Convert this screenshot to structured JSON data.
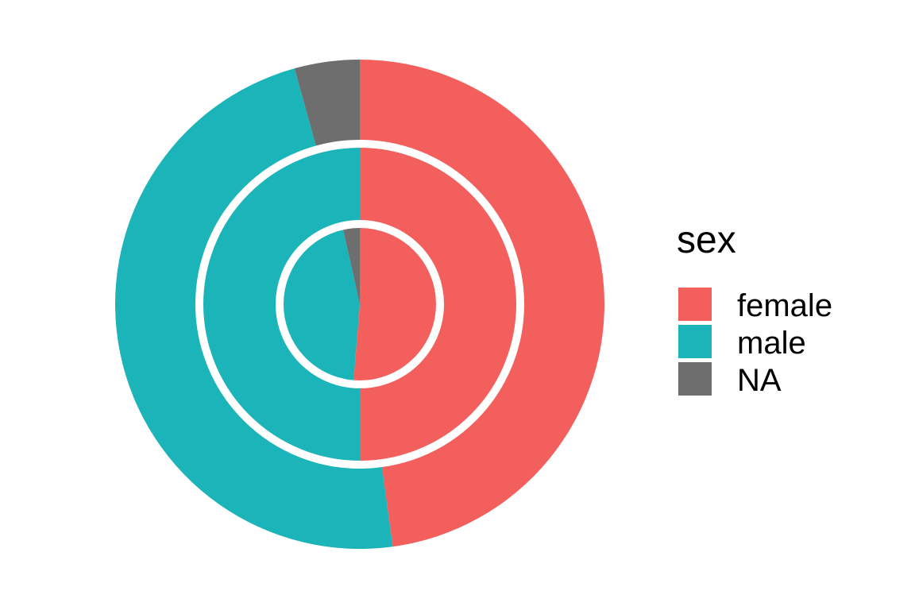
{
  "chart_data": {
    "type": "pie",
    "subtype": "nested-donut",
    "rings": [
      {
        "ring": "outer",
        "values": [
          {
            "category": "female",
            "share": 0.4785
          },
          {
            "category": "male",
            "share": 0.4785
          },
          {
            "category": "NA",
            "share": 0.043
          }
        ]
      },
      {
        "ring": "middle",
        "values": [
          {
            "category": "female",
            "share": 0.5
          },
          {
            "category": "male",
            "share": 0.5
          }
        ]
      },
      {
        "ring": "inner",
        "values": [
          {
            "category": "female",
            "share": 0.513
          },
          {
            "category": "male",
            "share": 0.452
          },
          {
            "category": "NA",
            "share": 0.035
          }
        ]
      }
    ],
    "legend": {
      "title": "sex",
      "placement": "right",
      "items": [
        {
          "label": "female",
          "color": "#F8766D"
        },
        {
          "label": "male",
          "color": "#00BFC4"
        },
        {
          "label": "NA",
          "color": "#7F7F7F"
        }
      ]
    },
    "colors": {
      "female": "#F35F5C",
      "male": "#1BB4B8",
      "NA": "#6E6E6E",
      "separator": "#FFFFFF",
      "background": "#FFFFFF"
    },
    "grid": false
  }
}
